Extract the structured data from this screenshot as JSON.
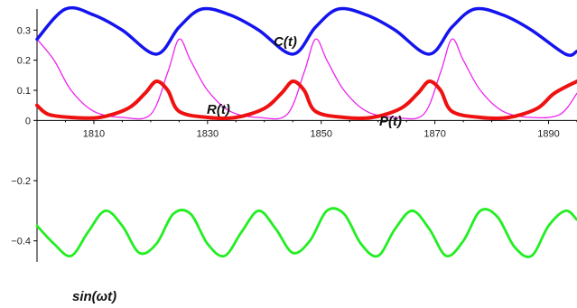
{
  "chart_data": {
    "type": "line",
    "title": "",
    "xlabel": "",
    "ylabel": "",
    "xlim": [
      1800,
      1895
    ],
    "ylim": [
      -0.5,
      0.37
    ],
    "x_ticks": [
      1810,
      1830,
      1850,
      1870,
      1890
    ],
    "y_ticks": [
      -0.4,
      -0.2,
      0,
      0.1,
      0.2,
      0.3
    ],
    "y_tick_labels": [
      "−0.4",
      "−0.2",
      "0",
      "0.1",
      "0.2",
      "0.3"
    ],
    "grid": false,
    "legend": "none",
    "period": 24.2,
    "series": [
      {
        "name": "C(t)",
        "color": "#1414ee",
        "x": [
          1800,
          1805,
          1810,
          1815,
          1821,
          1825,
          1829,
          1834,
          1839,
          1845,
          1849,
          1853,
          1858,
          1863,
          1869,
          1873,
          1877,
          1882,
          1887,
          1893,
          1895
        ],
        "values": [
          0.27,
          0.37,
          0.35,
          0.3,
          0.22,
          0.31,
          0.37,
          0.35,
          0.3,
          0.22,
          0.31,
          0.37,
          0.35,
          0.3,
          0.22,
          0.31,
          0.37,
          0.35,
          0.3,
          0.22,
          0.23
        ]
      },
      {
        "name": "R(t)",
        "color": "#ee22ee",
        "x": [
          1800,
          1803,
          1806,
          1810,
          1815,
          1820,
          1823,
          1825,
          1827,
          1830,
          1834,
          1839,
          1844,
          1847,
          1849,
          1851,
          1854,
          1858,
          1863,
          1868,
          1871,
          1873,
          1875,
          1878,
          1882,
          1887,
          1892,
          1895
        ],
        "values": [
          0.27,
          0.2,
          0.1,
          0.03,
          0.01,
          0.02,
          0.16,
          0.27,
          0.2,
          0.1,
          0.03,
          0.01,
          0.02,
          0.16,
          0.27,
          0.2,
          0.1,
          0.03,
          0.01,
          0.02,
          0.16,
          0.27,
          0.2,
          0.1,
          0.03,
          0.01,
          0.02,
          0.09
        ]
      },
      {
        "name": "P(t)",
        "color": "#ee1111",
        "x": [
          1800,
          1802,
          1806,
          1811,
          1816,
          1819,
          1821,
          1823,
          1825,
          1830,
          1835,
          1840,
          1843,
          1845,
          1847,
          1849,
          1854,
          1859,
          1864,
          1867,
          1869,
          1871,
          1873,
          1878,
          1883,
          1888,
          1891,
          1895
        ],
        "values": [
          0.05,
          0.02,
          0.01,
          0.01,
          0.04,
          0.09,
          0.13,
          0.1,
          0.03,
          0.01,
          0.01,
          0.04,
          0.09,
          0.13,
          0.1,
          0.03,
          0.01,
          0.01,
          0.04,
          0.09,
          0.13,
          0.1,
          0.03,
          0.01,
          0.01,
          0.04,
          0.09,
          0.13
        ]
      },
      {
        "name": "sin(ωt)",
        "color": "#22ee22",
        "x": [
          1800,
          1803,
          1806,
          1809,
          1812,
          1815,
          1818,
          1821,
          1824,
          1827,
          1830,
          1833,
          1836,
          1839,
          1842,
          1845,
          1848,
          1851,
          1854,
          1857,
          1860,
          1863,
          1866,
          1869,
          1872,
          1875,
          1878,
          1881,
          1884,
          1887,
          1890,
          1893,
          1895
        ],
        "values": [
          -0.35,
          -0.41,
          -0.45,
          -0.37,
          -0.3,
          -0.35,
          -0.44,
          -0.41,
          -0.31,
          -0.31,
          -0.41,
          -0.45,
          -0.37,
          -0.3,
          -0.36,
          -0.44,
          -0.4,
          -0.3,
          -0.31,
          -0.41,
          -0.45,
          -0.36,
          -0.3,
          -0.36,
          -0.45,
          -0.4,
          -0.3,
          -0.32,
          -0.42,
          -0.45,
          -0.35,
          -0.3,
          -0.33
        ]
      }
    ]
  }
}
